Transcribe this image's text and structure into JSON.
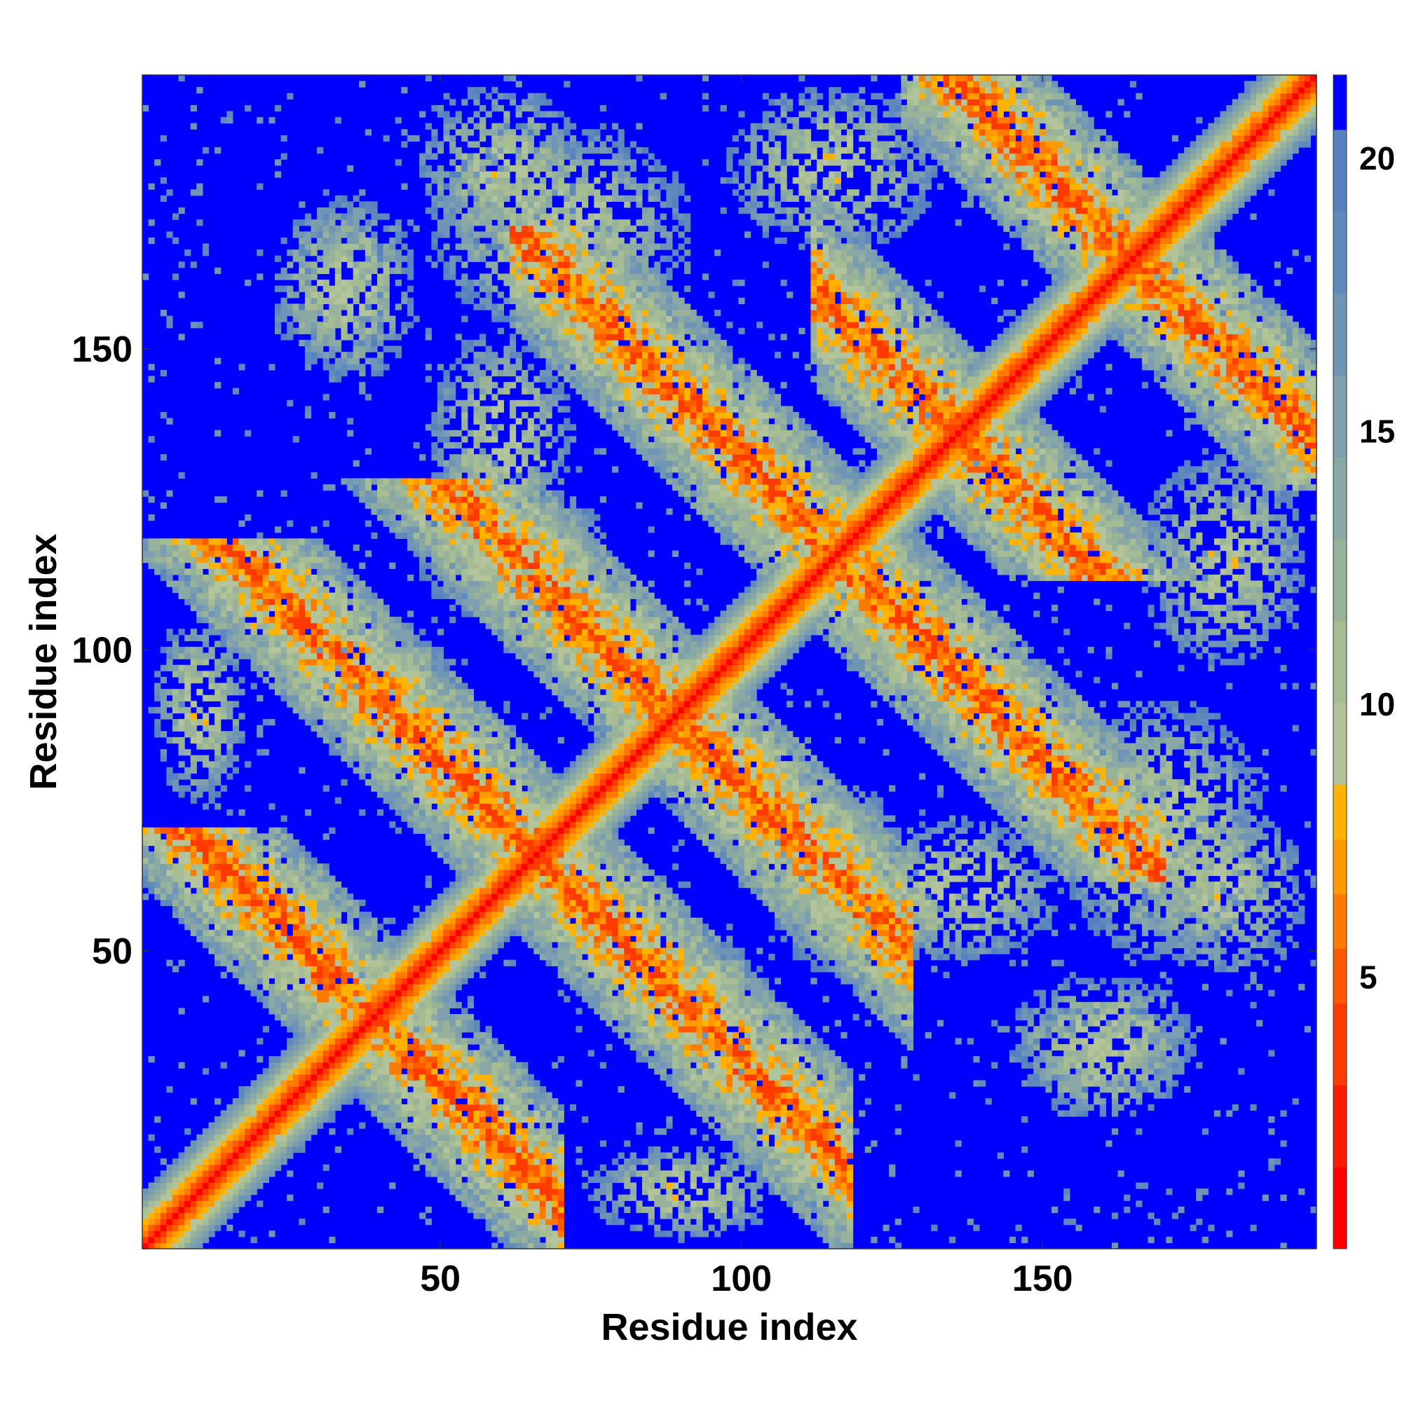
{
  "chart_data": {
    "type": "heatmap",
    "title": "",
    "xlabel": "Residue index",
    "ylabel": "Residue index",
    "n_residues": 195,
    "xlim": [
      1,
      195
    ],
    "ylim": [
      1,
      195
    ],
    "x_ticks": [
      50,
      100,
      150
    ],
    "y_ticks": [
      50,
      100,
      150
    ],
    "grid": false,
    "colorbar": {
      "label": "",
      "range": [
        0,
        21.5
      ],
      "ticks": [
        5,
        10,
        15,
        20
      ],
      "levels": [
        {
          "max": 1.5,
          "color": "#ff0000"
        },
        {
          "max": 3,
          "color": "#ff1a00"
        },
        {
          "max": 4.5,
          "color": "#ff3b00"
        },
        {
          "max": 5.5,
          "color": "#ff5a00"
        },
        {
          "max": 6.5,
          "color": "#ff7a00"
        },
        {
          "max": 7.5,
          "color": "#ff9a00"
        },
        {
          "max": 8.5,
          "color": "#ffb300"
        },
        {
          "max": 10,
          "color": "#b3c49a"
        },
        {
          "max": 11.5,
          "color": "#a6bd93"
        },
        {
          "max": 13,
          "color": "#98b39a"
        },
        {
          "max": 14.5,
          "color": "#8aa8a4"
        },
        {
          "max": 16,
          "color": "#7c9eae"
        },
        {
          "max": 17.5,
          "color": "#6e94b6"
        },
        {
          "max": 19,
          "color": "#5f89bc"
        },
        {
          "max": 20.5,
          "color": "#5681bf"
        },
        {
          "max": 21.5,
          "color": "#0000ff"
        }
      ]
    },
    "contact_bands": [
      {
        "kind": "diagonal",
        "half_width": 9
      },
      {
        "kind": "antiparallel",
        "sum": 78,
        "from": 1,
        "to": 62,
        "half_width": 8
      },
      {
        "kind": "antiparallel",
        "sum": 132,
        "from": 1,
        "to": 110,
        "half_width": 8
      },
      {
        "kind": "antiparallel",
        "sum": 232,
        "from": 70,
        "to": 162,
        "half_width": 8
      },
      {
        "kind": "antiparallel",
        "sum": 272,
        "from": 120,
        "to": 195,
        "half_width": 8
      },
      {
        "kind": "antiparallel",
        "sum": 330,
        "from": 135,
        "to": 195,
        "half_width": 8
      },
      {
        "kind": "antiparallel",
        "sum": 178,
        "from": 40,
        "to": 120,
        "half_width": 8
      }
    ],
    "contact_patches": [
      {
        "x": 32,
        "y": 160,
        "rx": 10,
        "ry": 14
      },
      {
        "x": 70,
        "y": 170,
        "rx": 22,
        "ry": 18
      },
      {
        "x": 60,
        "y": 115,
        "rx": 14,
        "ry": 10
      },
      {
        "x": 115,
        "y": 68,
        "rx": 12,
        "ry": 10
      },
      {
        "x": 160,
        "y": 36,
        "rx": 16,
        "ry": 10
      },
      {
        "x": 180,
        "y": 60,
        "rx": 14,
        "ry": 14
      },
      {
        "x": 135,
        "y": 60,
        "rx": 18,
        "ry": 12
      },
      {
        "x": 95,
        "y": 40,
        "rx": 10,
        "ry": 12
      },
      {
        "x": 180,
        "y": 115,
        "rx": 14,
        "ry": 18
      },
      {
        "x": 10,
        "y": 90,
        "rx": 8,
        "ry": 16
      }
    ]
  }
}
